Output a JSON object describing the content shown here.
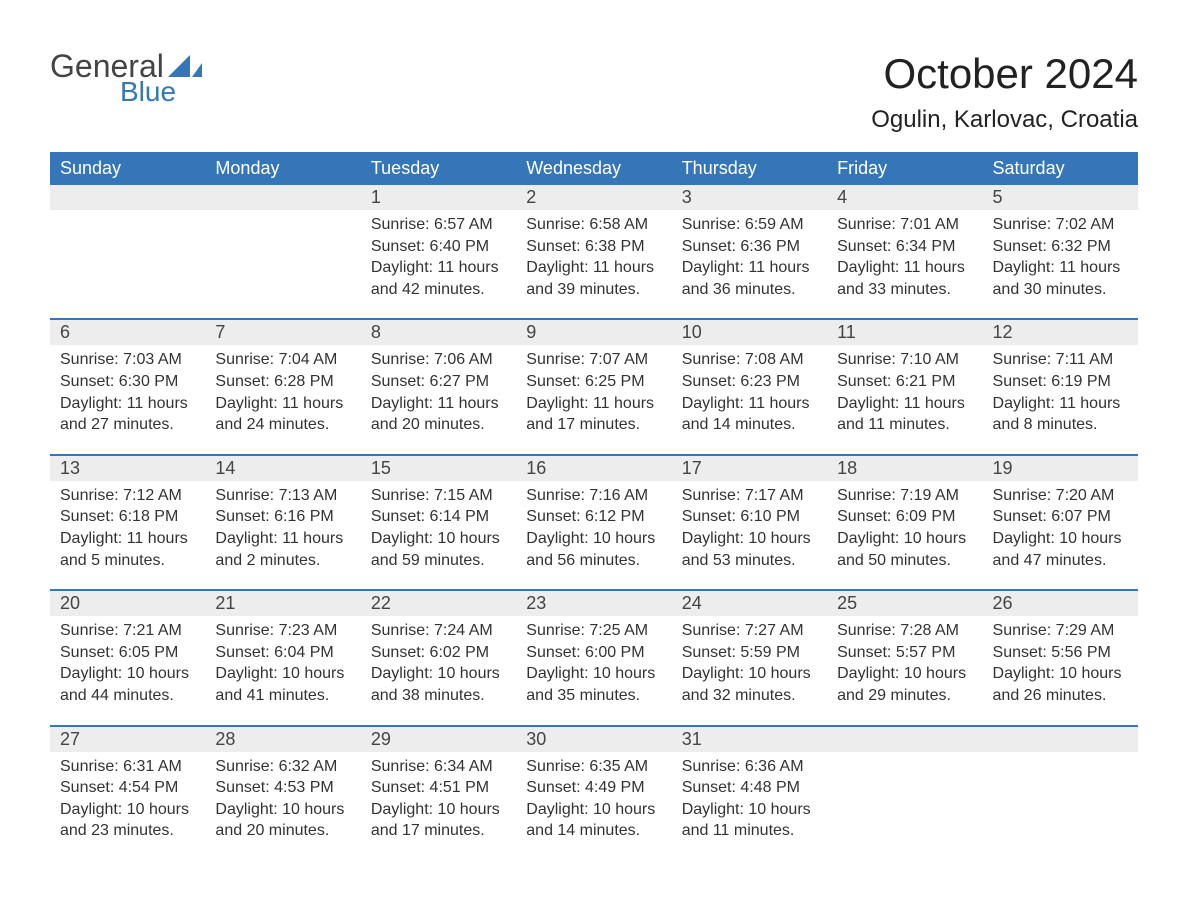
{
  "brand": {
    "word1": "General",
    "word2": "Blue",
    "general_color": "#444444",
    "blue_color": "#3576b8"
  },
  "title": "October 2024",
  "location": "Ogulin, Karlovac, Croatia",
  "colors": {
    "header_bg": "#3576b8",
    "header_text": "#ffffff",
    "daynum_bg": "#ededed",
    "row_border": "#3576b8",
    "body_text": "#333333",
    "page_bg": "#ffffff",
    "title_text": "#222222"
  },
  "typography": {
    "title_fontsize": 42,
    "location_fontsize": 24,
    "header_fontsize": 18,
    "daynum_fontsize": 18,
    "cell_fontsize": 16,
    "font_family": "Arial"
  },
  "columns": [
    "Sunday",
    "Monday",
    "Tuesday",
    "Wednesday",
    "Thursday",
    "Friday",
    "Saturday"
  ],
  "weeks": [
    [
      null,
      null,
      {
        "n": "1",
        "sr": "6:57 AM",
        "ss": "6:40 PM",
        "dl": "11 hours and 42 minutes."
      },
      {
        "n": "2",
        "sr": "6:58 AM",
        "ss": "6:38 PM",
        "dl": "11 hours and 39 minutes."
      },
      {
        "n": "3",
        "sr": "6:59 AM",
        "ss": "6:36 PM",
        "dl": "11 hours and 36 minutes."
      },
      {
        "n": "4",
        "sr": "7:01 AM",
        "ss": "6:34 PM",
        "dl": "11 hours and 33 minutes."
      },
      {
        "n": "5",
        "sr": "7:02 AM",
        "ss": "6:32 PM",
        "dl": "11 hours and 30 minutes."
      }
    ],
    [
      {
        "n": "6",
        "sr": "7:03 AM",
        "ss": "6:30 PM",
        "dl": "11 hours and 27 minutes."
      },
      {
        "n": "7",
        "sr": "7:04 AM",
        "ss": "6:28 PM",
        "dl": "11 hours and 24 minutes."
      },
      {
        "n": "8",
        "sr": "7:06 AM",
        "ss": "6:27 PM",
        "dl": "11 hours and 20 minutes."
      },
      {
        "n": "9",
        "sr": "7:07 AM",
        "ss": "6:25 PM",
        "dl": "11 hours and 17 minutes."
      },
      {
        "n": "10",
        "sr": "7:08 AM",
        "ss": "6:23 PM",
        "dl": "11 hours and 14 minutes."
      },
      {
        "n": "11",
        "sr": "7:10 AM",
        "ss": "6:21 PM",
        "dl": "11 hours and 11 minutes."
      },
      {
        "n": "12",
        "sr": "7:11 AM",
        "ss": "6:19 PM",
        "dl": "11 hours and 8 minutes."
      }
    ],
    [
      {
        "n": "13",
        "sr": "7:12 AM",
        "ss": "6:18 PM",
        "dl": "11 hours and 5 minutes."
      },
      {
        "n": "14",
        "sr": "7:13 AM",
        "ss": "6:16 PM",
        "dl": "11 hours and 2 minutes."
      },
      {
        "n": "15",
        "sr": "7:15 AM",
        "ss": "6:14 PM",
        "dl": "10 hours and 59 minutes."
      },
      {
        "n": "16",
        "sr": "7:16 AM",
        "ss": "6:12 PM",
        "dl": "10 hours and 56 minutes."
      },
      {
        "n": "17",
        "sr": "7:17 AM",
        "ss": "6:10 PM",
        "dl": "10 hours and 53 minutes."
      },
      {
        "n": "18",
        "sr": "7:19 AM",
        "ss": "6:09 PM",
        "dl": "10 hours and 50 minutes."
      },
      {
        "n": "19",
        "sr": "7:20 AM",
        "ss": "6:07 PM",
        "dl": "10 hours and 47 minutes."
      }
    ],
    [
      {
        "n": "20",
        "sr": "7:21 AM",
        "ss": "6:05 PM",
        "dl": "10 hours and 44 minutes."
      },
      {
        "n": "21",
        "sr": "7:23 AM",
        "ss": "6:04 PM",
        "dl": "10 hours and 41 minutes."
      },
      {
        "n": "22",
        "sr": "7:24 AM",
        "ss": "6:02 PM",
        "dl": "10 hours and 38 minutes."
      },
      {
        "n": "23",
        "sr": "7:25 AM",
        "ss": "6:00 PM",
        "dl": "10 hours and 35 minutes."
      },
      {
        "n": "24",
        "sr": "7:27 AM",
        "ss": "5:59 PM",
        "dl": "10 hours and 32 minutes."
      },
      {
        "n": "25",
        "sr": "7:28 AM",
        "ss": "5:57 PM",
        "dl": "10 hours and 29 minutes."
      },
      {
        "n": "26",
        "sr": "7:29 AM",
        "ss": "5:56 PM",
        "dl": "10 hours and 26 minutes."
      }
    ],
    [
      {
        "n": "27",
        "sr": "6:31 AM",
        "ss": "4:54 PM",
        "dl": "10 hours and 23 minutes."
      },
      {
        "n": "28",
        "sr": "6:32 AM",
        "ss": "4:53 PM",
        "dl": "10 hours and 20 minutes."
      },
      {
        "n": "29",
        "sr": "6:34 AM",
        "ss": "4:51 PM",
        "dl": "10 hours and 17 minutes."
      },
      {
        "n": "30",
        "sr": "6:35 AM",
        "ss": "4:49 PM",
        "dl": "10 hours and 14 minutes."
      },
      {
        "n": "31",
        "sr": "6:36 AM",
        "ss": "4:48 PM",
        "dl": "10 hours and 11 minutes."
      },
      null,
      null
    ]
  ],
  "labels": {
    "sunrise": "Sunrise: ",
    "sunset": "Sunset: ",
    "daylight": "Daylight: "
  }
}
